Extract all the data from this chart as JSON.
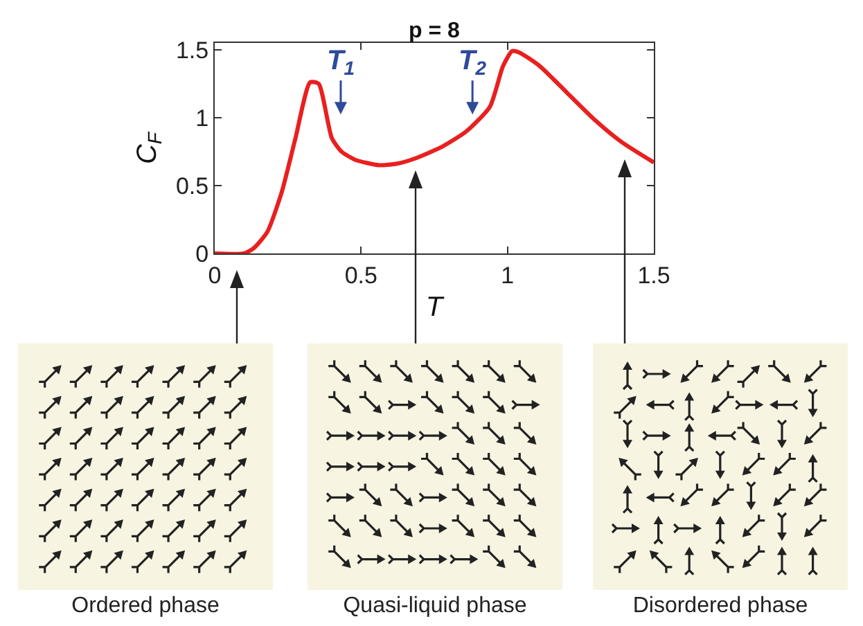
{
  "chart_data": {
    "type": "line",
    "title": "p = 8",
    "xlabel": "T",
    "ylabel": "C$_{F}$",
    "x": [
      0,
      0.1,
      0.134,
      0.18,
      0.23,
      0.276,
      0.326,
      0.355,
      0.4,
      0.433,
      0.48,
      0.56,
      0.62,
      0.685,
      0.78,
      0.86,
      0.94,
      0.985,
      1.016,
      1.04,
      1.11,
      1.205,
      1.3,
      1.39,
      1.5
    ],
    "series": [
      {
        "color": "#e8201f",
        "values": [
          0,
          0,
          0.04,
          0.16,
          0.46,
          0.85,
          1.26,
          1.25,
          0.85,
          0.75,
          0.69,
          0.65,
          0.66,
          0.7,
          0.79,
          0.9,
          1.08,
          1.38,
          1.49,
          1.48,
          1.38,
          1.18,
          0.98,
          0.82,
          0.67
        ]
      }
    ],
    "xlim": [
      0,
      1.5
    ],
    "xticks": [
      0,
      0.5,
      1,
      1.5
    ],
    "ylim": [
      0,
      1.55
    ],
    "yticks": [
      0,
      0.5,
      1,
      1.5
    ],
    "grid": false,
    "annotations": [
      "T$_{1}$",
      "T$_{2}$",
      "Ordered phase",
      "Quasi-liquid phase",
      "Disordered phase"
    ]
  }
}
